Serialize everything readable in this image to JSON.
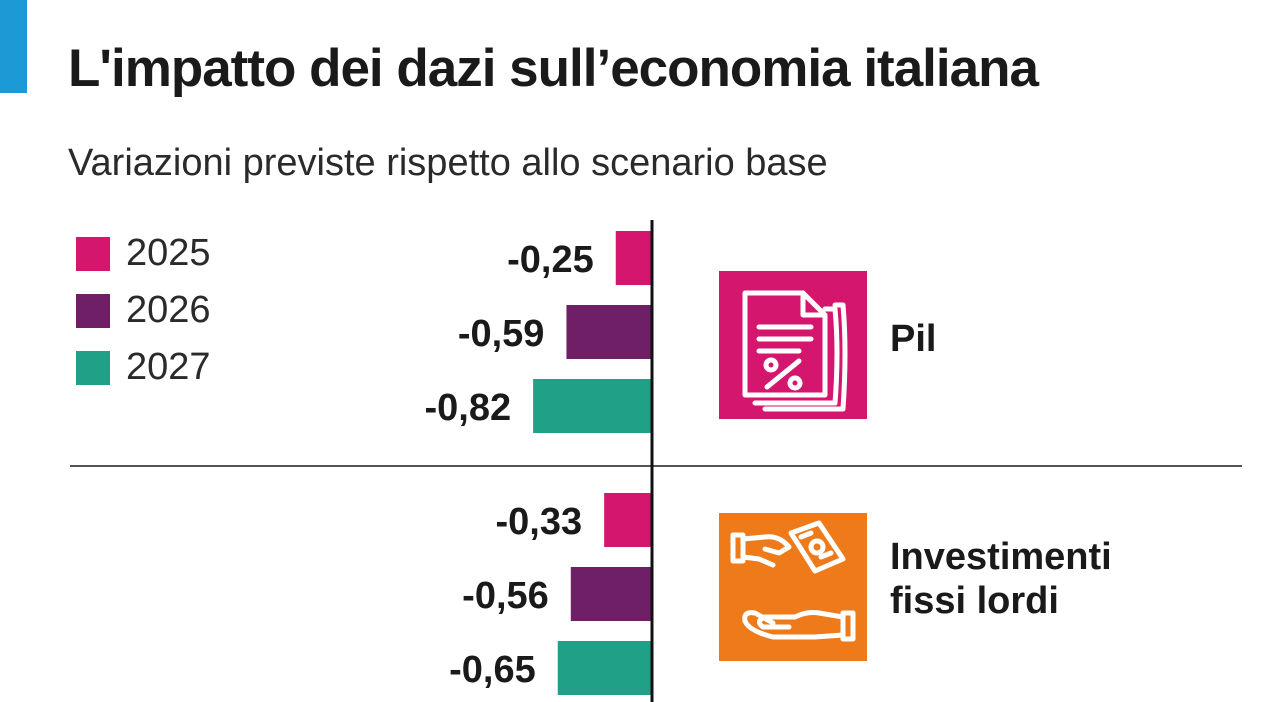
{
  "title": "L'impatto dei dazi sull’economia italiana",
  "subtitle": "Variazioni previste rispetto allo scenario base",
  "colors": {
    "accent": "#1b9ad6",
    "series_2025": "#d4166e",
    "series_2026": "#6e1f65",
    "series_2027": "#21a088",
    "icon_pil": "#d4166e",
    "icon_investimenti": "#ee7a1a"
  },
  "legend": [
    {
      "label": "2025",
      "color": "#d4166e"
    },
    {
      "label": "2026",
      "color": "#6e1f65"
    },
    {
      "label": "2027",
      "color": "#21a088"
    }
  ],
  "chart_data": {
    "type": "bar",
    "orientation": "horizontal",
    "title": "L'impatto dei dazi sull’economia italiana",
    "subtitle": "Variazioni previste rispetto allo scenario base",
    "categories": [
      "Pil",
      "Investimenti fissi lordi"
    ],
    "series": [
      {
        "name": "2025",
        "values": [
          -0.25,
          -0.33
        ],
        "labels": [
          "-0,25",
          "-0,33"
        ]
      },
      {
        "name": "2026",
        "values": [
          -0.59,
          -0.56
        ],
        "labels": [
          "-0,59",
          "-0,56"
        ]
      },
      {
        "name": "2027",
        "values": [
          -0.82,
          -0.65
        ],
        "labels": [
          "-0,82",
          "-0,65"
        ]
      }
    ],
    "xlim": [
      -1,
      0
    ],
    "legend_position": "top-left",
    "grid": false
  },
  "categories": [
    {
      "label_lines": [
        "Pil"
      ],
      "icon": "document-percent-icon"
    },
    {
      "label_lines": [
        "Investimenti",
        "fissi lordi"
      ],
      "icon": "hand-money-icon"
    }
  ]
}
